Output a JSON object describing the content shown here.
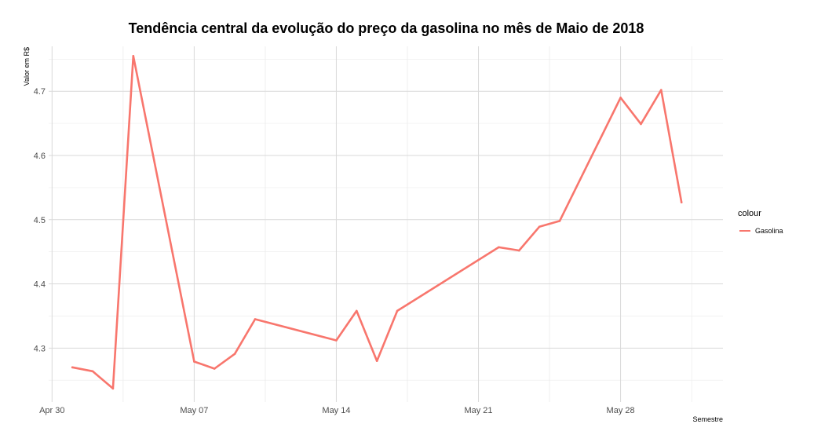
{
  "chart_data": {
    "type": "line",
    "title": "Tendência central da evolução do preço da gasolina no mês de Maio de 2018",
    "xlabel": "Semestre",
    "ylabel": "Valor em R$",
    "x_ticks": [
      {
        "date": "2018-04-30",
        "label": "Apr 30"
      },
      {
        "date": "2018-05-07",
        "label": "May 07"
      },
      {
        "date": "2018-05-14",
        "label": "May 14"
      },
      {
        "date": "2018-05-21",
        "label": "May 21"
      },
      {
        "date": "2018-05-28",
        "label": "May 28"
      }
    ],
    "y_ticks": [
      "4.3",
      "4.4",
      "4.5",
      "4.6",
      "4.7"
    ],
    "xlim": [
      "2018-04-29T20:00",
      "2018-06-02T01:00"
    ],
    "ylim": [
      4.216,
      4.77
    ],
    "grid": true,
    "legend": {
      "title": "colour",
      "position": "right"
    },
    "series": [
      {
        "name": "Gasolina",
        "color": "#F8766D",
        "points": [
          {
            "x": "2018-05-01",
            "y": 4.27
          },
          {
            "x": "2018-05-02",
            "y": 4.264
          },
          {
            "x": "2018-05-03",
            "y": 4.237
          },
          {
            "x": "2018-05-04",
            "y": 4.755
          },
          {
            "x": "2018-05-07",
            "y": 4.279
          },
          {
            "x": "2018-05-08",
            "y": 4.268
          },
          {
            "x": "2018-05-09",
            "y": 4.291
          },
          {
            "x": "2018-05-10",
            "y": 4.345
          },
          {
            "x": "2018-05-14",
            "y": 4.312
          },
          {
            "x": "2018-05-15",
            "y": 4.358
          },
          {
            "x": "2018-05-16",
            "y": 4.28
          },
          {
            "x": "2018-05-17",
            "y": 4.358
          },
          {
            "x": "2018-05-22",
            "y": 4.457
          },
          {
            "x": "2018-05-23",
            "y": 4.452
          },
          {
            "x": "2018-05-24",
            "y": 4.489
          },
          {
            "x": "2018-05-25",
            "y": 4.498
          },
          {
            "x": "2018-05-28",
            "y": 4.69
          },
          {
            "x": "2018-05-29",
            "y": 4.649
          },
          {
            "x": "2018-05-30",
            "y": 4.702
          },
          {
            "x": "2018-05-31",
            "y": 4.527
          }
        ]
      }
    ]
  }
}
